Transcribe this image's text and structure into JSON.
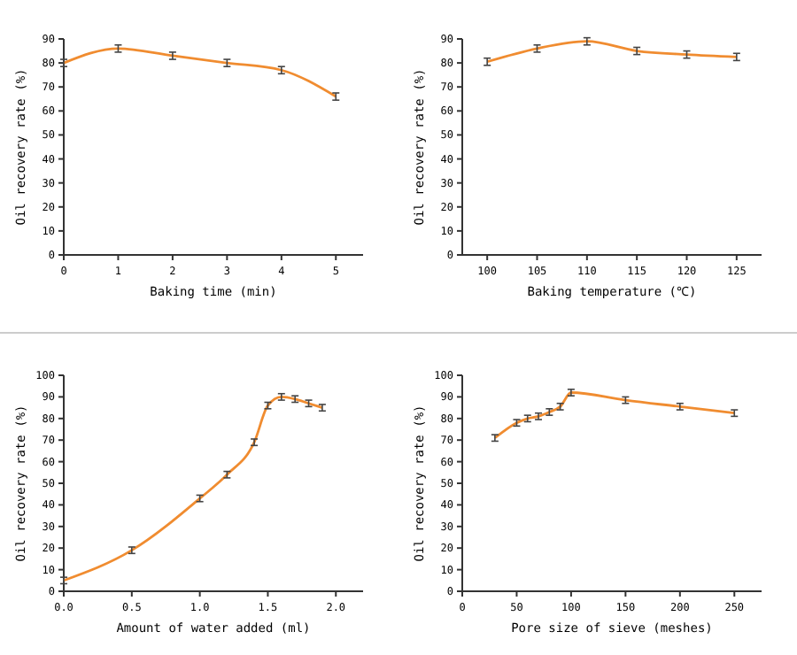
{
  "chart_data": [
    {
      "type": "line",
      "xlabel": "Baking time (min)",
      "ylabel": "Oil recovery rate (%)",
      "x": [
        0,
        1,
        2,
        3,
        4,
        5
      ],
      "xlim": [
        0,
        5.5
      ],
      "xticks": [
        0,
        1,
        2,
        3,
        4,
        5
      ],
      "ylim": [
        0,
        90
      ],
      "yticks": [
        0,
        10,
        20,
        30,
        40,
        50,
        60,
        70,
        80,
        90
      ],
      "marker": "none",
      "series": [
        {
          "color": "#f08c30",
          "values": [
            80,
            86,
            83,
            80,
            77,
            66
          ],
          "errors": [
            1.5,
            1.5,
            1.5,
            1.5,
            1.5,
            1.5
          ]
        }
      ]
    },
    {
      "type": "line",
      "xlabel": "Baking temperature (℃)",
      "ylabel": "Oil recovery rate (%)",
      "x": [
        100,
        105,
        110,
        115,
        120,
        125
      ],
      "xlim": [
        97.5,
        127.5
      ],
      "xticks": [
        100,
        105,
        110,
        115,
        120,
        125
      ],
      "ylim": [
        0,
        90
      ],
      "yticks": [
        0,
        10,
        20,
        30,
        40,
        50,
        60,
        70,
        80,
        90
      ],
      "marker": "none",
      "series": [
        {
          "color": "#f08c30",
          "values": [
            80.5,
            86,
            89,
            85,
            83.5,
            82.5
          ],
          "errors": [
            1.5,
            1.5,
            1.5,
            1.5,
            1.5,
            1.5
          ]
        }
      ]
    },
    {
      "type": "line",
      "xlabel": "Amount of water added (ml)",
      "ylabel": "Oil recovery rate (%)",
      "x": [
        0,
        0.5,
        1,
        1.2,
        1.4,
        1.5,
        1.6,
        1.7,
        1.8,
        1.9
      ],
      "xlim": [
        0,
        2.2
      ],
      "xticks": [
        {
          "value": 0,
          "label": "0.0"
        },
        {
          "value": 0.5,
          "label": "0.5"
        },
        {
          "value": 1,
          "label": "1.0"
        },
        {
          "value": 1.5,
          "label": "1.5"
        },
        {
          "value": 2,
          "label": "2.0"
        }
      ],
      "ylim": [
        0,
        100
      ],
      "yticks": [
        0,
        10,
        20,
        30,
        40,
        50,
        60,
        70,
        80,
        90,
        100
      ],
      "marker": "none",
      "series": [
        {
          "color": "#f08c30",
          "values": [
            5,
            19,
            43,
            54,
            69,
            86,
            90,
            89,
            87,
            85
          ],
          "errors": [
            1.5,
            1.5,
            1.5,
            1.5,
            1.5,
            1.5,
            1.5,
            1.5,
            1.5,
            1.5
          ]
        }
      ]
    },
    {
      "type": "line",
      "xlabel": "Pore size of sieve (meshes)",
      "ylabel": "Oil recovery rate (%)",
      "x": [
        30,
        50,
        60,
        70,
        80,
        90,
        100,
        150,
        200,
        250
      ],
      "xlim": [
        0,
        275
      ],
      "xticks": [
        0,
        50,
        100,
        150,
        200,
        250
      ],
      "ylim": [
        0,
        100
      ],
      "yticks": [
        0,
        10,
        20,
        30,
        40,
        50,
        60,
        70,
        80,
        90,
        100
      ],
      "marker": "none",
      "series": [
        {
          "color": "#f08c30",
          "values": [
            71,
            78,
            80,
            81,
            83,
            85.5,
            92,
            88.5,
            85.5,
            82.5
          ],
          "errors": [
            1.5,
            1.5,
            1.5,
            1.5,
            1.5,
            1.5,
            1.5,
            1.5,
            1.5,
            1.5
          ]
        }
      ]
    }
  ]
}
